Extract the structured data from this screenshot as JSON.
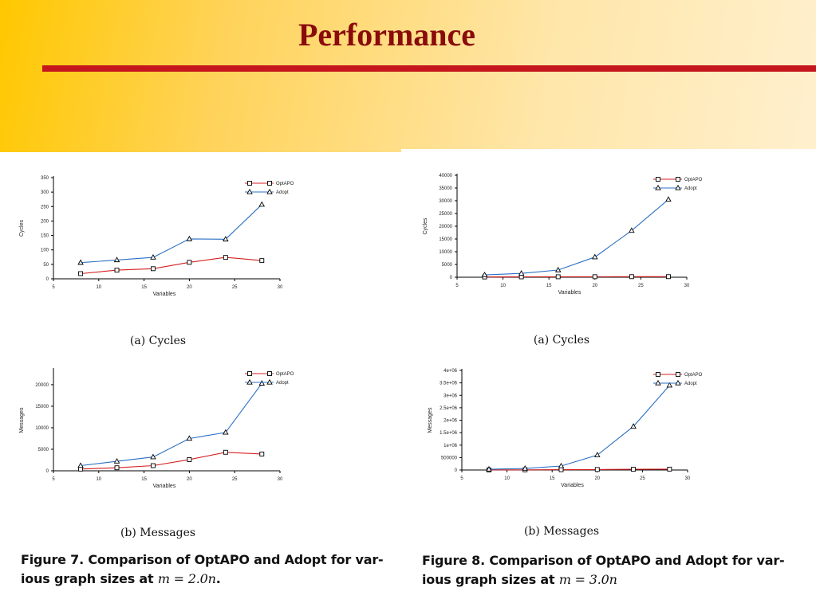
{
  "slide": {
    "title": "Performance"
  },
  "colors": {
    "optapo": "#d42020",
    "adopt": "#2a6fc4",
    "title": "#8a0b0b",
    "rule": "#c4161c"
  },
  "figure7": {
    "caption_bold": "Figure 7. Comparison of OptAPO and Adopt for var-",
    "caption_line2": "ious graph sizes at ",
    "caption_math": "m = 2.0n",
    "caption_end": ".",
    "sub_a": "(a) Cycles",
    "sub_b": "(b) Messages"
  },
  "figure8": {
    "caption_bold": "Figure 8. Comparison of OptAPO and Adopt for var-",
    "caption_line2": "ious graph sizes at ",
    "caption_math": "m = 3.0n",
    "caption_end": "",
    "sub_a": "(a) Cycles",
    "sub_b": "(b) Messages"
  },
  "chart_data": [
    {
      "id": "fig7a",
      "type": "line",
      "xlabel": "Variables",
      "ylabel": "Cycles",
      "xlim": [
        5,
        30
      ],
      "ylim": [
        0,
        350
      ],
      "xticks": [
        "5",
        "10",
        "15",
        "20",
        "25",
        "30"
      ],
      "yticks": [
        "0",
        "50",
        "100",
        "150",
        "200",
        "250",
        "300",
        "350"
      ],
      "x": [
        8,
        12,
        16,
        20,
        24,
        28
      ],
      "legend": "top-right",
      "series": [
        {
          "name": "OptAPO",
          "marker": "square",
          "values": [
            18,
            30,
            35,
            57,
            74,
            63
          ]
        },
        {
          "name": "Adopt",
          "marker": "triangle",
          "values": [
            56,
            65,
            74,
            138,
            137,
            257
          ]
        }
      ]
    },
    {
      "id": "fig7b",
      "type": "line",
      "xlabel": "Variables",
      "ylabel": "Messages",
      "xlim": [
        5,
        30
      ],
      "ylim": [
        0,
        23500
      ],
      "xticks": [
        "5",
        "10",
        "15",
        "20",
        "25",
        "30"
      ],
      "yticks": [
        "0",
        "5000",
        "10000",
        "15000",
        "20000"
      ],
      "x": [
        8,
        12,
        16,
        20,
        24,
        28
      ],
      "legend": "top-right",
      "series": [
        {
          "name": "OptAPO",
          "marker": "square",
          "values": [
            400,
            700,
            1200,
            2600,
            4300,
            3900
          ]
        },
        {
          "name": "Adopt",
          "marker": "triangle",
          "values": [
            1200,
            2200,
            3200,
            7500,
            8900,
            20300
          ]
        }
      ]
    },
    {
      "id": "fig8a",
      "type": "line",
      "xlabel": "Variables",
      "ylabel": "Cycles",
      "xlim": [
        5,
        30
      ],
      "ylim": [
        0,
        40000
      ],
      "xticks": [
        "5",
        "10",
        "15",
        "20",
        "25",
        "30"
      ],
      "yticks": [
        "0",
        "5000",
        "10000",
        "15000",
        "20000",
        "25000",
        "30000",
        "35000",
        "40000"
      ],
      "x": [
        8,
        12,
        16,
        20,
        24,
        28
      ],
      "legend": "top-right",
      "series": [
        {
          "name": "OptAPO",
          "marker": "square",
          "values": [
            100,
            150,
            180,
            200,
            220,
            230
          ]
        },
        {
          "name": "Adopt",
          "marker": "triangle",
          "values": [
            900,
            1500,
            2800,
            7900,
            18300,
            30500
          ]
        }
      ]
    },
    {
      "id": "fig8b",
      "type": "line",
      "xlabel": "Variables",
      "ylabel": "Messages",
      "xlim": [
        5,
        30
      ],
      "ylim": [
        0,
        4000000
      ],
      "xticks": [
        "5",
        "10",
        "15",
        "20",
        "25",
        "30"
      ],
      "yticks": [
        "0",
        "500000",
        "1e+06",
        "1.5e+06",
        "2e+06",
        "2.5e+06",
        "3e+06",
        "3.5e+06",
        "4e+06"
      ],
      "x": [
        8,
        12,
        16,
        20,
        24,
        28
      ],
      "legend": "top-right",
      "series": [
        {
          "name": "OptAPO",
          "marker": "square",
          "values": [
            5000,
            8000,
            12000,
            20000,
            30000,
            35000
          ]
        },
        {
          "name": "Adopt",
          "marker": "triangle",
          "values": [
            30000,
            60000,
            160000,
            600000,
            1750000,
            3400000
          ]
        }
      ]
    }
  ]
}
